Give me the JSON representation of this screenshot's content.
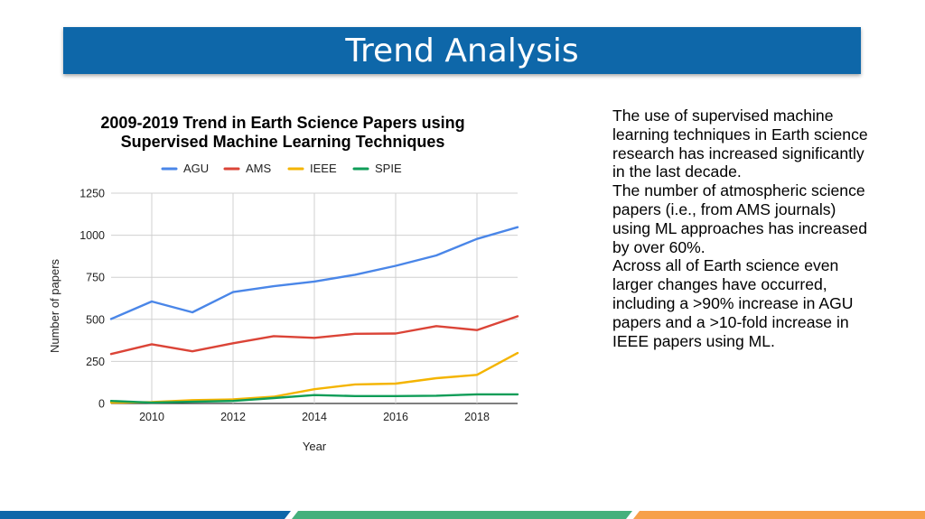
{
  "slide": {
    "title": "Trend Analysis",
    "body": [
      "The use of supervised machine learning techniques in Earth science research has increased significantly in the last decade.",
      "The number of atmospheric science papers (i.e., from AMS journals) using ML approaches has increased by over 60%.",
      "Across all of Earth science even larger changes have occurred, including a >90% increase in AGU papers and a >10-fold increase in IEEE papers using ML."
    ],
    "colors": {
      "title_bar": "#0e67a9",
      "stripe_blue": "#0e67a9",
      "stripe_green": "#45b07c",
      "stripe_orange": "#f7a04a"
    }
  },
  "chart_data": {
    "type": "line",
    "title_lines": [
      "2009-2019 Trend in Earth Science Papers using",
      "Supervised Machine Learning Techniques"
    ],
    "xlabel": "Year",
    "ylabel": "Number of papers",
    "xlim": [
      2009,
      2019
    ],
    "ylim": [
      0,
      1250
    ],
    "x_ticks": [
      "2010",
      "2012",
      "2014",
      "2016",
      "2018"
    ],
    "x_tick_values": [
      2010,
      2012,
      2014,
      2016,
      2018
    ],
    "y_ticks": [
      "0",
      "250",
      "500",
      "750",
      "1000",
      "1250"
    ],
    "y_tick_values": [
      0,
      250,
      500,
      750,
      1000,
      1250
    ],
    "grid": true,
    "legend_position": "top",
    "x": [
      2009,
      2010,
      2011,
      2012,
      2013,
      2014,
      2015,
      2016,
      2017,
      2018,
      2019
    ],
    "series": [
      {
        "name": "AGU",
        "color": "#4a86e8",
        "values": [
          502,
          606,
          542,
          662,
          697,
          725,
          765,
          818,
          880,
          978,
          1048
        ]
      },
      {
        "name": "AMS",
        "color": "#db4437",
        "values": [
          294,
          352,
          310,
          358,
          400,
          390,
          414,
          416,
          460,
          436,
          518
        ]
      },
      {
        "name": "IEEE",
        "color": "#f4b400",
        "values": [
          5,
          8,
          20,
          24,
          40,
          85,
          113,
          118,
          150,
          170,
          300
        ]
      },
      {
        "name": "SPIE",
        "color": "#0f9d58",
        "values": [
          15,
          5,
          10,
          15,
          32,
          50,
          44,
          44,
          46,
          54,
          54
        ]
      }
    ]
  }
}
